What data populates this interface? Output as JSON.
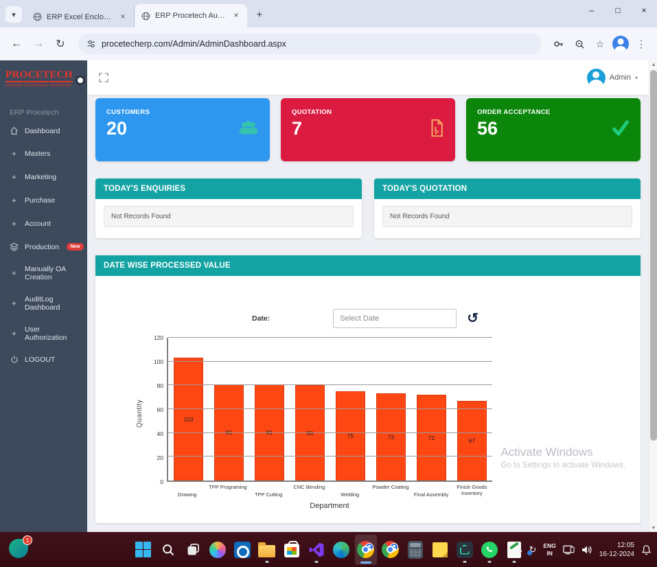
{
  "glyphs": {
    "tab_search": "▾",
    "close": "×",
    "new_tab": "+",
    "minimize": "–",
    "maximize": "□",
    "back": "←",
    "forward": "→",
    "reload": "↻",
    "star": "☆",
    "kebab": "⋮",
    "caret_down": "▾",
    "tray_chevron": "▴",
    "refresh": "↺",
    "plus": "+",
    "scroll_up": "▲",
    "scroll_down": "▼"
  },
  "browser": {
    "tabs": [
      {
        "title": "ERP Excel Enclosure"
      },
      {
        "title": "ERP Procetech Automation Pvt"
      }
    ],
    "url": "procetecherp.com/Admin/AdminDashboard.aspx"
  },
  "sidebar": {
    "logo": "PROCETECH",
    "tagline": "Innovate | Automate | Accelerate",
    "section_label": "ERP Procetech",
    "items": [
      {
        "label": "Dashboard"
      },
      {
        "label": "Masters"
      },
      {
        "label": "Marketing"
      },
      {
        "label": "Purchase"
      },
      {
        "label": "Account"
      },
      {
        "label": "Production",
        "badge": "New"
      },
      {
        "label": "Manually OA Creation"
      },
      {
        "label": "AuditLog Dashboard"
      },
      {
        "label": "User Authorization"
      },
      {
        "label": "LOGOUT"
      }
    ]
  },
  "header": {
    "user": "Admin"
  },
  "cards": [
    {
      "label": "CUSTOMERS",
      "value": "20",
      "color": "#2d96ee"
    },
    {
      "label": "QUOTATION",
      "value": "7",
      "color": "#dc1b41"
    },
    {
      "label": "ORDER ACCEPTANCE",
      "value": "56",
      "color": "#0b860b"
    }
  ],
  "panels": [
    {
      "title": "TODAY'S ENQUIRIES",
      "empty_text": "Not Records Found"
    },
    {
      "title": "TODAY'S QUOTATION",
      "empty_text": "Not Records Found"
    }
  ],
  "chart_panel": {
    "title": "DATE WISE PROCESSED VALUE",
    "date_label": "Date:",
    "date_placeholder": "Select Date"
  },
  "chart_data": {
    "type": "bar",
    "categories": [
      "Drawing",
      "TPP Programing",
      "TPP Cutting",
      "CNC Bending",
      "Welding",
      "Powder Coating",
      "Final Assembly",
      "Finish Goods Inventory"
    ],
    "values": [
      103,
      81,
      81,
      80,
      75,
      73,
      72,
      67
    ],
    "title": "DATE WISE PROCESSED VALUE",
    "xlabel": "Department",
    "ylabel": "Quantity",
    "ylim": [
      0,
      120
    ],
    "yticks": [
      0,
      20,
      40,
      60,
      80,
      100,
      120
    ],
    "bar_color": "#ff4713",
    "grid": true,
    "legend": false
  },
  "watermark": {
    "line1": "Activate Windows",
    "line2": "Go to Settings to activate Windows."
  },
  "taskbar": {
    "notification_count": "1",
    "language": "ENG",
    "region": "IN",
    "time": "12:05",
    "date": "16-12-2024"
  }
}
